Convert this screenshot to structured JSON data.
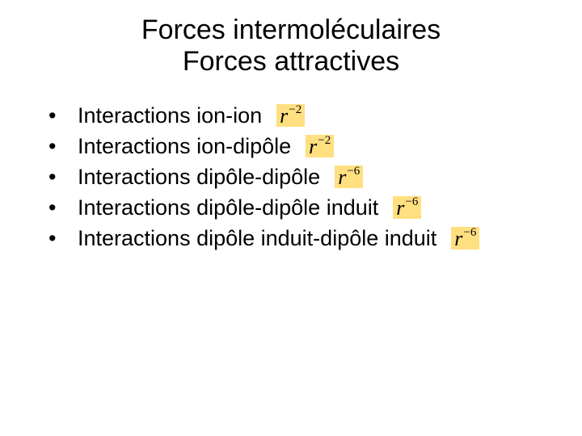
{
  "title": {
    "line1": "Forces intermoléculaires",
    "line2": "Forces attractives",
    "fontsize": 34,
    "color": "#000000"
  },
  "bullet_char": "•",
  "items": [
    {
      "text": "Interactions ion-ion",
      "formula_base": "r",
      "formula_exp": "−2"
    },
    {
      "text": "Interactions ion-dipôle",
      "formula_base": "r",
      "formula_exp": "−2"
    },
    {
      "text": "Interactions dipôle-dipôle",
      "formula_base": "r",
      "formula_exp": "−6"
    },
    {
      "text": "Interactions dipôle-dipôle induit",
      "formula_base": "r",
      "formula_exp": "−6"
    },
    {
      "text": "Interactions dipôle induit-dipôle induit",
      "formula_base": "r",
      "formula_exp": "−6"
    }
  ],
  "style": {
    "body_fontsize": 27,
    "background": "#ffffff",
    "text_color": "#000000",
    "formula_bg": "#ffdf7f",
    "formula_font": "Times New Roman"
  }
}
